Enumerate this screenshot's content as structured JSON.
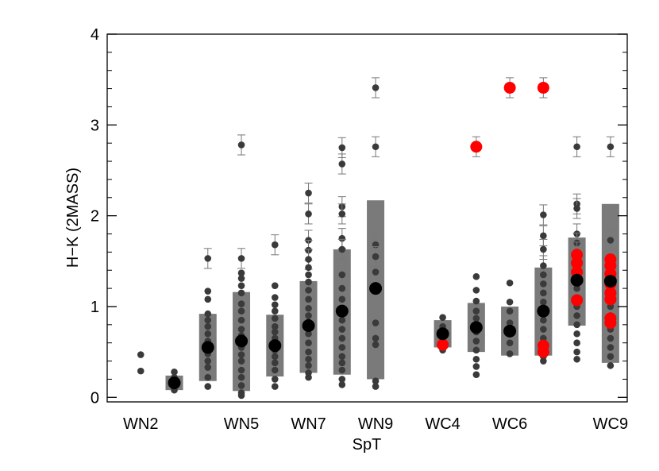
{
  "chart_data": {
    "type": "scatter",
    "title": "",
    "xlabel": "SpT",
    "ylabel": "H−K (2MASS)",
    "xlim": [
      0,
      15.5
    ],
    "ylim": [
      -0.05,
      4.0
    ],
    "grid": false,
    "legend": "none",
    "x_ticks": [
      {
        "x": 1,
        "label": "WN2"
      },
      {
        "x": 4,
        "label": "WN5"
      },
      {
        "x": 6,
        "label": "WN7"
      },
      {
        "x": 8,
        "label": "WN9"
      },
      {
        "x": 10,
        "label": "WC4"
      },
      {
        "x": 12,
        "label": "WC6"
      },
      {
        "x": 15,
        "label": "WC9"
      }
    ],
    "y_ticks": [
      {
        "y": 0,
        "label": "0"
      },
      {
        "y": 1,
        "label": "1"
      },
      {
        "y": 2,
        "label": "2"
      },
      {
        "y": 3,
        "label": "3"
      },
      {
        "y": 4,
        "label": "4"
      }
    ],
    "colors": {
      "individual": "#3a3a3a",
      "range_bar": "#7a7a7a",
      "median": "#000000",
      "highlight": "#ff0000",
      "error_bar": "#777777"
    },
    "ranges": [
      {
        "x": 2,
        "low": 0.08,
        "high": 0.24
      },
      {
        "x": 3,
        "low": 0.18,
        "high": 0.92
      },
      {
        "x": 4,
        "low": 0.07,
        "high": 1.16
      },
      {
        "x": 5,
        "low": 0.23,
        "high": 0.91
      },
      {
        "x": 6,
        "low": 0.27,
        "high": 1.28
      },
      {
        "x": 7,
        "low": 0.25,
        "high": 1.63
      },
      {
        "x": 8,
        "low": 0.2,
        "high": 2.17
      },
      {
        "x": 10,
        "low": 0.55,
        "high": 0.85
      },
      {
        "x": 11,
        "low": 0.5,
        "high": 1.04
      },
      {
        "x": 12,
        "low": 0.46,
        "high": 1.0
      },
      {
        "x": 13,
        "low": 0.46,
        "high": 1.43
      },
      {
        "x": 14,
        "low": 0.79,
        "high": 1.76
      },
      {
        "x": 15,
        "low": 0.38,
        "high": 2.13
      }
    ],
    "medians": [
      {
        "x": 2,
        "y": 0.16
      },
      {
        "x": 3,
        "y": 0.55
      },
      {
        "x": 4,
        "y": 0.62
      },
      {
        "x": 5,
        "y": 0.57
      },
      {
        "x": 6,
        "y": 0.79
      },
      {
        "x": 7,
        "y": 0.95
      },
      {
        "x": 8,
        "y": 1.2
      },
      {
        "x": 10,
        "y": 0.7
      },
      {
        "x": 11,
        "y": 0.77
      },
      {
        "x": 12,
        "y": 0.73
      },
      {
        "x": 13,
        "y": 0.95
      },
      {
        "x": 14,
        "y": 1.29
      },
      {
        "x": 15,
        "y": 1.28
      }
    ],
    "series": [
      {
        "type": "individual",
        "points": [
          {
            "x": 1,
            "y": 0.47
          },
          {
            "x": 1,
            "y": 0.29
          },
          {
            "x": 2,
            "y": 0.28
          },
          {
            "x": 2,
            "y": 0.22
          },
          {
            "x": 2,
            "y": 0.14
          },
          {
            "x": 2,
            "y": 0.08
          },
          {
            "x": 3,
            "y": 1.53
          },
          {
            "x": 3,
            "y": 1.17
          },
          {
            "x": 3,
            "y": 1.08
          },
          {
            "x": 3,
            "y": 0.92
          },
          {
            "x": 3,
            "y": 0.85
          },
          {
            "x": 3,
            "y": 0.78
          },
          {
            "x": 3,
            "y": 0.7
          },
          {
            "x": 3,
            "y": 0.62
          },
          {
            "x": 3,
            "y": 0.48
          },
          {
            "x": 3,
            "y": 0.4
          },
          {
            "x": 3,
            "y": 0.33
          },
          {
            "x": 3,
            "y": 0.22
          },
          {
            "x": 3,
            "y": 0.12
          },
          {
            "x": 4,
            "y": 2.78
          },
          {
            "x": 4,
            "y": 1.53
          },
          {
            "x": 4,
            "y": 1.37
          },
          {
            "x": 4,
            "y": 1.31
          },
          {
            "x": 4,
            "y": 1.23
          },
          {
            "x": 4,
            "y": 1.15
          },
          {
            "x": 4,
            "y": 1.03
          },
          {
            "x": 4,
            "y": 0.95
          },
          {
            "x": 4,
            "y": 0.85
          },
          {
            "x": 4,
            "y": 0.75
          },
          {
            "x": 4,
            "y": 0.68
          },
          {
            "x": 4,
            "y": 0.55
          },
          {
            "x": 4,
            "y": 0.47
          },
          {
            "x": 4,
            "y": 0.4
          },
          {
            "x": 4,
            "y": 0.3
          },
          {
            "x": 4,
            "y": 0.22
          },
          {
            "x": 4,
            "y": 0.13
          },
          {
            "x": 4,
            "y": 0.05
          },
          {
            "x": 4,
            "y": 0.02
          },
          {
            "x": 5,
            "y": 1.68
          },
          {
            "x": 5,
            "y": 1.23
          },
          {
            "x": 5,
            "y": 1.1
          },
          {
            "x": 5,
            "y": 1.02
          },
          {
            "x": 5,
            "y": 0.95
          },
          {
            "x": 5,
            "y": 0.87
          },
          {
            "x": 5,
            "y": 0.78
          },
          {
            "x": 5,
            "y": 0.72
          },
          {
            "x": 5,
            "y": 0.65
          },
          {
            "x": 5,
            "y": 0.52
          },
          {
            "x": 5,
            "y": 0.45
          },
          {
            "x": 5,
            "y": 0.38
          },
          {
            "x": 5,
            "y": 0.3
          },
          {
            "x": 5,
            "y": 0.2
          },
          {
            "x": 5,
            "y": 0.12
          },
          {
            "x": 6,
            "y": 2.25
          },
          {
            "x": 6,
            "y": 2.02
          },
          {
            "x": 6,
            "y": 1.73
          },
          {
            "x": 6,
            "y": 1.62
          },
          {
            "x": 6,
            "y": 1.52
          },
          {
            "x": 6,
            "y": 1.43
          },
          {
            "x": 6,
            "y": 1.35
          },
          {
            "x": 6,
            "y": 1.27
          },
          {
            "x": 6,
            "y": 1.18
          },
          {
            "x": 6,
            "y": 1.08
          },
          {
            "x": 6,
            "y": 0.98
          },
          {
            "x": 6,
            "y": 0.9
          },
          {
            "x": 6,
            "y": 0.83
          },
          {
            "x": 6,
            "y": 0.7
          },
          {
            "x": 6,
            "y": 0.6
          },
          {
            "x": 6,
            "y": 0.5
          },
          {
            "x": 6,
            "y": 0.42
          },
          {
            "x": 6,
            "y": 0.35
          },
          {
            "x": 6,
            "y": 0.27
          },
          {
            "x": 6,
            "y": 0.22
          },
          {
            "x": 7,
            "y": 2.75
          },
          {
            "x": 7,
            "y": 2.57
          },
          {
            "x": 7,
            "y": 2.1
          },
          {
            "x": 7,
            "y": 2.02
          },
          {
            "x": 7,
            "y": 1.75
          },
          {
            "x": 7,
            "y": 1.63
          },
          {
            "x": 7,
            "y": 1.35
          },
          {
            "x": 7,
            "y": 1.2
          },
          {
            "x": 7,
            "y": 1.08
          },
          {
            "x": 7,
            "y": 0.95
          },
          {
            "x": 7,
            "y": 0.85
          },
          {
            "x": 7,
            "y": 0.75
          },
          {
            "x": 7,
            "y": 0.65
          },
          {
            "x": 7,
            "y": 0.55
          },
          {
            "x": 7,
            "y": 0.45
          },
          {
            "x": 7,
            "y": 0.38
          },
          {
            "x": 7,
            "y": 0.3
          },
          {
            "x": 7,
            "y": 0.2
          },
          {
            "x": 7,
            "y": 0.14
          },
          {
            "x": 8,
            "y": 3.41
          },
          {
            "x": 8,
            "y": 2.76
          },
          {
            "x": 8,
            "y": 1.68
          },
          {
            "x": 8,
            "y": 1.55
          },
          {
            "x": 8,
            "y": 1.38
          },
          {
            "x": 8,
            "y": 0.82
          },
          {
            "x": 8,
            "y": 0.65
          },
          {
            "x": 8,
            "y": 0.58
          },
          {
            "x": 8,
            "y": 0.18
          },
          {
            "x": 8,
            "y": 0.12
          },
          {
            "x": 10,
            "y": 0.88
          },
          {
            "x": 10,
            "y": 0.78
          },
          {
            "x": 10,
            "y": 0.72
          },
          {
            "x": 10,
            "y": 0.52
          },
          {
            "x": 11,
            "y": 1.33
          },
          {
            "x": 11,
            "y": 1.18
          },
          {
            "x": 11,
            "y": 1.06
          },
          {
            "x": 11,
            "y": 0.95
          },
          {
            "x": 11,
            "y": 0.87
          },
          {
            "x": 11,
            "y": 0.8
          },
          {
            "x": 11,
            "y": 0.72
          },
          {
            "x": 11,
            "y": 0.62
          },
          {
            "x": 11,
            "y": 0.52
          },
          {
            "x": 11,
            "y": 0.42
          },
          {
            "x": 11,
            "y": 0.34
          },
          {
            "x": 11,
            "y": 0.25
          },
          {
            "x": 12,
            "y": 1.26
          },
          {
            "x": 12,
            "y": 1.05
          },
          {
            "x": 12,
            "y": 0.95
          },
          {
            "x": 12,
            "y": 0.82
          },
          {
            "x": 12,
            "y": 0.72
          },
          {
            "x": 12,
            "y": 0.6
          },
          {
            "x": 12,
            "y": 0.48
          },
          {
            "x": 13,
            "y": 2.01
          },
          {
            "x": 13,
            "y": 1.78
          },
          {
            "x": 13,
            "y": 1.63
          },
          {
            "x": 13,
            "y": 1.45
          },
          {
            "x": 13,
            "y": 1.35
          },
          {
            "x": 13,
            "y": 1.25
          },
          {
            "x": 13,
            "y": 1.15
          },
          {
            "x": 13,
            "y": 1.05
          },
          {
            "x": 13,
            "y": 0.95
          },
          {
            "x": 13,
            "y": 0.85
          },
          {
            "x": 13,
            "y": 0.75
          },
          {
            "x": 13,
            "y": 0.65
          },
          {
            "x": 13,
            "y": 0.58
          },
          {
            "x": 13,
            "y": 0.45
          },
          {
            "x": 13,
            "y": 0.4
          },
          {
            "x": 14,
            "y": 2.76
          },
          {
            "x": 14,
            "y": 2.13
          },
          {
            "x": 14,
            "y": 2.08
          },
          {
            "x": 14,
            "y": 1.8
          },
          {
            "x": 14,
            "y": 1.7
          },
          {
            "x": 14,
            "y": 1.6
          },
          {
            "x": 14,
            "y": 1.4
          },
          {
            "x": 14,
            "y": 1.2
          },
          {
            "x": 14,
            "y": 1.0
          },
          {
            "x": 14,
            "y": 0.9
          },
          {
            "x": 14,
            "y": 0.8
          },
          {
            "x": 14,
            "y": 0.7
          },
          {
            "x": 14,
            "y": 0.6
          },
          {
            "x": 14,
            "y": 0.5
          },
          {
            "x": 14,
            "y": 0.42
          },
          {
            "x": 15,
            "y": 2.76
          },
          {
            "x": 15,
            "y": 1.73
          },
          {
            "x": 15,
            "y": 1.0
          },
          {
            "x": 15,
            "y": 0.9
          },
          {
            "x": 15,
            "y": 0.75
          },
          {
            "x": 15,
            "y": 0.65
          },
          {
            "x": 15,
            "y": 0.55
          },
          {
            "x": 15,
            "y": 0.45
          },
          {
            "x": 15,
            "y": 0.35
          }
        ]
      },
      {
        "type": "highlight",
        "points": [
          {
            "x": 10,
            "y": 0.58
          },
          {
            "x": 11,
            "y": 2.76
          },
          {
            "x": 12,
            "y": 3.41
          },
          {
            "x": 13,
            "y": 3.41
          },
          {
            "x": 13,
            "y": 0.57
          },
          {
            "x": 13,
            "y": 0.5
          },
          {
            "x": 14,
            "y": 1.57
          },
          {
            "x": 14,
            "y": 1.48
          },
          {
            "x": 14,
            "y": 1.38
          },
          {
            "x": 14,
            "y": 1.07
          },
          {
            "x": 15,
            "y": 1.52
          },
          {
            "x": 15,
            "y": 1.45
          },
          {
            "x": 15,
            "y": 1.36
          },
          {
            "x": 15,
            "y": 1.25
          },
          {
            "x": 15,
            "y": 1.15
          },
          {
            "x": 15,
            "y": 1.08
          },
          {
            "x": 15,
            "y": 0.87
          },
          {
            "x": 15,
            "y": 0.82
          }
        ]
      }
    ]
  }
}
